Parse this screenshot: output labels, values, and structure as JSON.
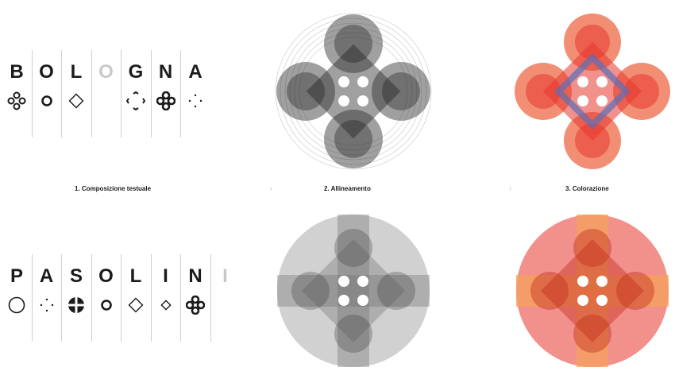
{
  "rows": [
    {
      "id": "bologna",
      "letters": [
        "B",
        "O",
        "L",
        "O",
        "G",
        "N",
        "A"
      ],
      "faded_letter_index": 3,
      "glyphs": [
        "four-ring-cluster-icon",
        "ring-icon",
        "diamond-outline-icon",
        "",
        "bracket-diamond-icon",
        "four-ring-bold-icon",
        "four-dot-diamond-icon"
      ]
    },
    {
      "id": "pasolini",
      "letters": [
        "P",
        "A",
        "S",
        "O",
        "L",
        "I",
        "N",
        "I"
      ],
      "faded_letter_index": 7,
      "glyphs": [
        "large-ring-icon",
        "four-dot-diamond-icon",
        "crossed-circle-icon",
        "ring-icon",
        "diamond-outline-icon",
        "small-diamond-icon",
        "four-ring-bold-icon",
        ""
      ]
    }
  ],
  "steps": [
    {
      "label": "1. Composizione testuale"
    },
    {
      "label": "2. Allineamento"
    },
    {
      "label": "3. Colorazione"
    }
  ],
  "arrows": [
    {
      "label": "›"
    },
    {
      "label": "›"
    }
  ],
  "colors": {
    "ink": "#1a1a1a",
    "faded": "#c8c8c8",
    "guide": "#cfcfcf",
    "gray_dark": "#2c2c2c",
    "gray_light": "#9a9a9a",
    "red": "#e8372d",
    "orange": "#f5a25d",
    "coral": "#f07a5a",
    "blue": "#5b6fb8"
  }
}
